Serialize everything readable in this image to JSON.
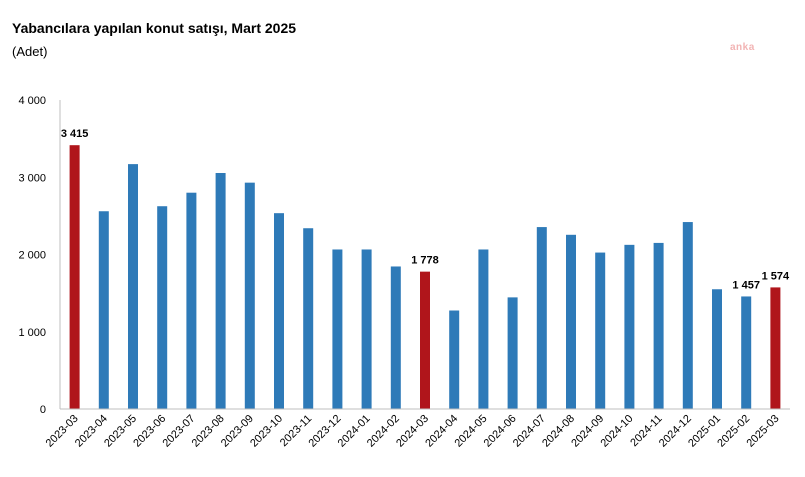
{
  "header": {
    "title": "Yabancılara yapılan konut satışı, Mart 2025",
    "subtitle": "(Adet)",
    "watermark": "anka"
  },
  "colors": {
    "regular": "#2e7ab8",
    "highlight": "#b0151b",
    "axis": "#bfbfbf"
  },
  "chart_data": {
    "type": "bar",
    "title": "Yabancılara yapılan konut satışı, Mart 2025",
    "subtitle": "(Adet)",
    "categories": [
      "2023-03",
      "2023-04",
      "2023-05",
      "2023-06",
      "2023-07",
      "2023-08",
      "2023-09",
      "2023-10",
      "2023-11",
      "2023-12",
      "2024-01",
      "2024-02",
      "2024-03",
      "2024-04",
      "2024-05",
      "2024-06",
      "2024-07",
      "2024-08",
      "2024-09",
      "2024-10",
      "2024-11",
      "2024-12",
      "2025-01",
      "2025-02",
      "2025-03"
    ],
    "values": [
      3415,
      2560,
      3170,
      2625,
      2800,
      3055,
      2930,
      2535,
      2340,
      2065,
      2065,
      1845,
      1778,
      1275,
      2065,
      1445,
      2355,
      2255,
      2025,
      2125,
      2150,
      2420,
      1550,
      1457,
      1574
    ],
    "highlighted": [
      "2023-03",
      "2024-03",
      "2025-03"
    ],
    "data_labels": [
      {
        "category": "2023-03",
        "text": "3 415"
      },
      {
        "category": "2024-03",
        "text": "1 778"
      },
      {
        "category": "2025-02",
        "text": "1 457"
      },
      {
        "category": "2025-03",
        "text": "1 574"
      }
    ],
    "yticks": [
      0,
      1000,
      2000,
      3000,
      4000
    ],
    "ytick_labels": [
      "0",
      "1 000",
      "2 000",
      "3 000",
      "4 000"
    ],
    "ylim": [
      0,
      4000
    ],
    "xlabel": "",
    "ylabel": "",
    "grid": false,
    "legend": "none"
  }
}
